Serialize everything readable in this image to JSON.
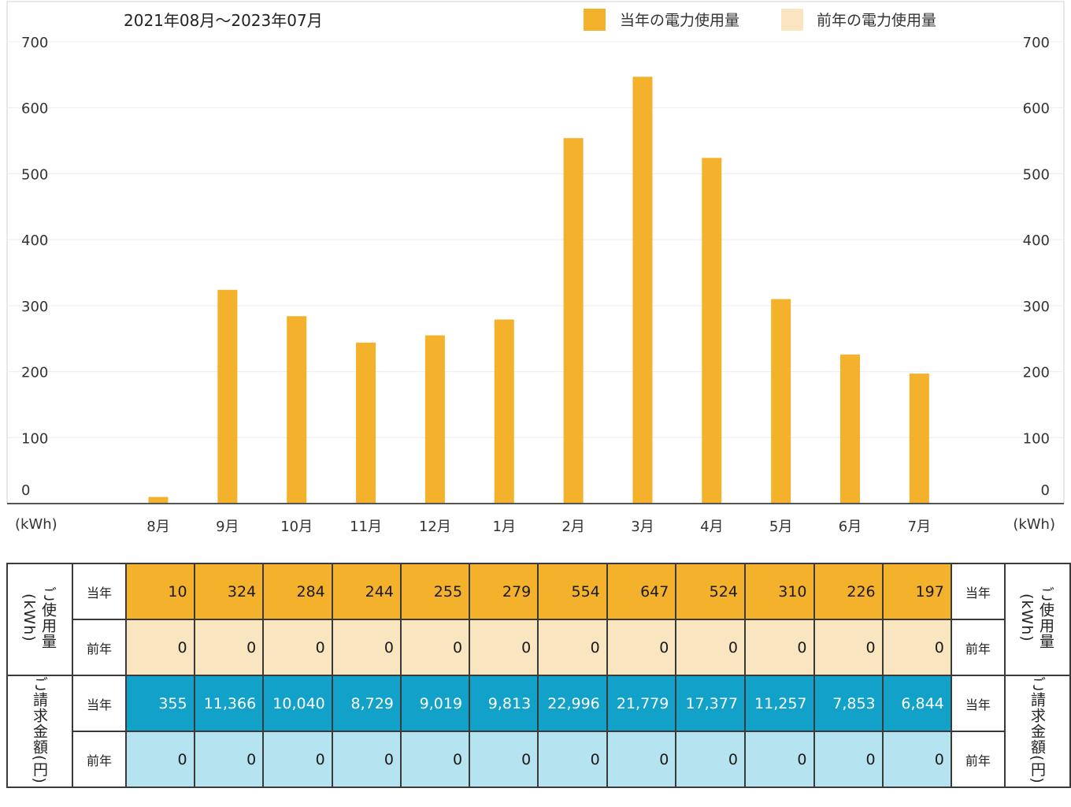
{
  "header": {
    "period": "2021年08月〜2023年07月",
    "legend_current": "当年の電力使用量",
    "legend_previous": "前年の電力使用量",
    "unit_left": "(kWh)",
    "unit_right": "(kWh)"
  },
  "colors": {
    "current": "#f3b12c",
    "previous": "#f9e5c0",
    "bill_current": "#11a1c9",
    "bill_previous": "#b6e3f0"
  },
  "chart_data": {
    "type": "bar",
    "categories": [
      "8月",
      "9月",
      "10月",
      "11月",
      "12月",
      "1月",
      "2月",
      "3月",
      "4月",
      "5月",
      "6月",
      "7月"
    ],
    "series": [
      {
        "name": "当年の電力使用量",
        "values": [
          10,
          324,
          284,
          244,
          255,
          279,
          554,
          647,
          524,
          310,
          226,
          197
        ]
      },
      {
        "name": "前年の電力使用量",
        "values": [
          0,
          0,
          0,
          0,
          0,
          0,
          0,
          0,
          0,
          0,
          0,
          0
        ]
      }
    ],
    "ylim": [
      0,
      700
    ],
    "yticks": [
      0,
      100,
      200,
      300,
      400,
      500,
      600,
      700
    ],
    "ylabel": "(kWh)",
    "grid": true,
    "legend": "top-right"
  },
  "table": {
    "usage_label": "ご使用量(kWh)",
    "billing_label": "ご請求金額(円)",
    "row_current": "当年",
    "row_previous": "前年",
    "usage_current": [
      "10",
      "324",
      "284",
      "244",
      "255",
      "279",
      "554",
      "647",
      "524",
      "310",
      "226",
      "197"
    ],
    "usage_previous": [
      "0",
      "0",
      "0",
      "0",
      "0",
      "0",
      "0",
      "0",
      "0",
      "0",
      "0",
      "0"
    ],
    "billing_current": [
      "355",
      "11,366",
      "10,040",
      "8,729",
      "9,019",
      "9,813",
      "22,996",
      "21,779",
      "17,377",
      "11,257",
      "7,853",
      "6,844"
    ],
    "billing_previous": [
      "0",
      "0",
      "0",
      "0",
      "0",
      "0",
      "0",
      "0",
      "0",
      "0",
      "0",
      "0"
    ]
  }
}
